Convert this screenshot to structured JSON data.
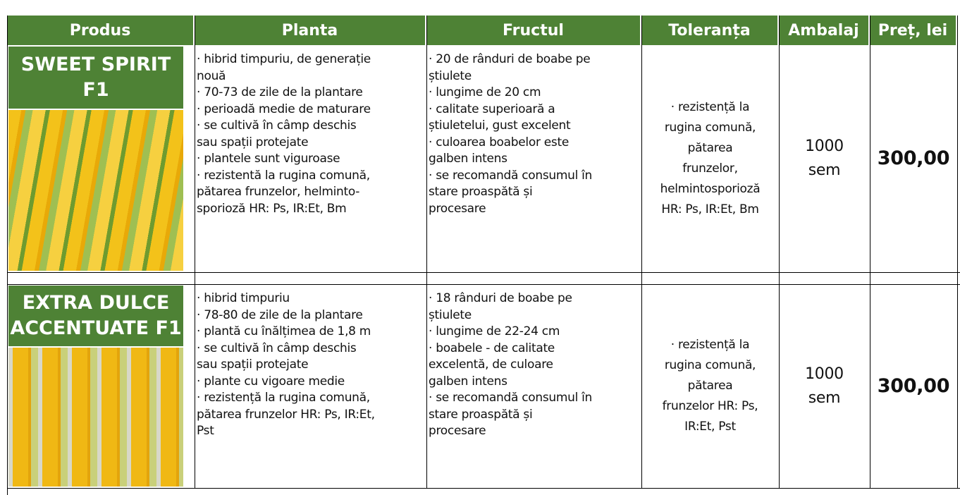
{
  "header": [
    "Produs",
    "Planta",
    "Fructul",
    "Toleranța",
    "Ambalaj",
    "Preț, lei"
  ],
  "rows": [
    {
      "name": [
        "SWEET SPIRIT",
        "F1"
      ],
      "planta": [
        "· hibrid timpuriu, de generație",
        "nouă",
        "· 70-73 de zile de la plantare",
        "· perioadă medie de maturare",
        "· se cultivă în câmp deschis",
        "sau spații protejate",
        "· plantele sunt viguroase",
        "· rezistentă la rugina comună,",
        "pătarea frunzelor, helminto-",
        "sporioză HR: Ps, IR:Et, Bm"
      ],
      "fructul": [
        "· 20 de rânduri de boabe pe",
        "știulete",
        "· lungime de 20 cm",
        "· calitate superioară a",
        "știuletelui, gust excelent",
        "· culoarea boabelor este",
        "galben intens",
        "· se recomandă consumul în",
        "stare proaspătă și",
        "procesare"
      ],
      "toleranta": [
        "· rezistență la",
        "rugina comună,",
        "pătarea",
        "frunzelor,",
        "helmintosporioză",
        "HR: Ps, IR:Et, Bm"
      ],
      "ambalaj": [
        "1000",
        "sem"
      ],
      "pret": "300,00"
    },
    {
      "name": [
        "EXTRA DULCE",
        "ACCENTUATE F1"
      ],
      "planta": [
        "· hibrid timpuriu",
        "· 78-80 de zile de la plantare",
        "· plantă cu înălțimea de 1,8 m",
        "· se cultivă în câmp deschis",
        "sau spații protejate",
        "· plante cu vigoare medie",
        "· rezistență la rugina comună,",
        "pătarea frunzelor HR: Ps, IR:Et,",
        "Pst"
      ],
      "fructul": [
        "· 18 rânduri de boabe pe",
        "știulete",
        "· lungime de 22-24 cm",
        "· boabele - de calitate",
        "excelentă, de culoare",
        "galben intens",
        "· se recomandă consumul în",
        "stare proaspătă și",
        "procesare"
      ],
      "toleranta": [
        "· rezistență la",
        "rugina comună,",
        "pătarea",
        "frunzelor HR: Ps,",
        "IR:Et, Pst"
      ],
      "ambalaj": [
        "1000",
        "sem"
      ],
      "pret": "300,00"
    }
  ]
}
